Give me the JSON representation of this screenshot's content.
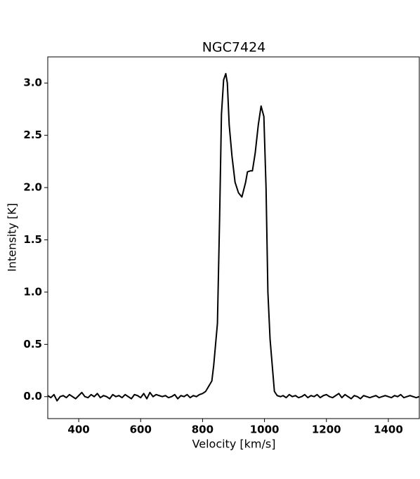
{
  "chart_data": {
    "type": "line",
    "title": "NGC7424",
    "x_label": "Velocity [km/s]",
    "y_label": "Intensity [K]",
    "x": [
      300,
      310,
      320,
      330,
      340,
      350,
      360,
      370,
      380,
      390,
      400,
      410,
      420,
      430,
      440,
      450,
      460,
      470,
      480,
      490,
      500,
      510,
      520,
      530,
      540,
      550,
      560,
      570,
      580,
      590,
      600,
      610,
      620,
      630,
      640,
      650,
      660,
      670,
      680,
      690,
      700,
      710,
      720,
      730,
      740,
      750,
      760,
      770,
      780,
      790,
      800,
      810,
      820,
      830,
      836,
      848,
      855,
      861,
      868,
      875,
      880,
      886,
      895,
      905,
      916,
      927,
      939,
      945,
      955,
      961,
      970,
      980,
      989,
      998,
      1005,
      1011,
      1018,
      1025,
      1032,
      1041,
      1052,
      1060,
      1070,
      1080,
      1090,
      1100,
      1110,
      1120,
      1130,
      1140,
      1150,
      1160,
      1170,
      1180,
      1190,
      1200,
      1210,
      1220,
      1230,
      1240,
      1250,
      1260,
      1270,
      1280,
      1290,
      1300,
      1310,
      1320,
      1330,
      1340,
      1350,
      1360,
      1370,
      1380,
      1390,
      1400,
      1410,
      1420,
      1430,
      1440,
      1450,
      1460,
      1470,
      1480,
      1490,
      1500
    ],
    "series": [
      {
        "name": "NGC7424",
        "color": "#000000",
        "values": [
          0.01,
          -0.01,
          0.02,
          -0.04,
          0.0,
          0.01,
          -0.01,
          0.02,
          0.0,
          -0.02,
          0.01,
          0.04,
          0.0,
          -0.01,
          0.02,
          0.0,
          0.03,
          -0.01,
          0.01,
          0.0,
          -0.02,
          0.02,
          0.0,
          0.01,
          -0.01,
          0.02,
          0.0,
          -0.02,
          0.02,
          0.01,
          -0.01,
          0.03,
          -0.02,
          0.04,
          0.0,
          0.02,
          0.01,
          0.0,
          0.01,
          -0.01,
          0.0,
          0.02,
          -0.02,
          0.01,
          0.0,
          0.02,
          -0.01,
          0.01,
          0.0,
          0.02,
          0.03,
          0.05,
          0.1,
          0.15,
          0.3,
          0.7,
          1.7,
          2.7,
          3.03,
          3.09,
          3.0,
          2.6,
          2.3,
          2.05,
          1.95,
          1.91,
          2.05,
          2.15,
          2.16,
          2.16,
          2.33,
          2.6,
          2.78,
          2.68,
          2.0,
          1.0,
          0.55,
          0.3,
          0.05,
          0.01,
          0.0,
          0.01,
          -0.01,
          0.02,
          0.0,
          0.01,
          -0.01,
          0.0,
          0.02,
          -0.01,
          0.01,
          0.0,
          0.02,
          -0.01,
          0.01,
          0.02,
          0.0,
          -0.01,
          0.01,
          0.03,
          -0.01,
          0.02,
          0.0,
          -0.02,
          0.01,
          0.0,
          -0.02,
          0.01,
          0.0,
          -0.01,
          0.0,
          0.01,
          -0.01,
          0.0,
          0.01,
          0.0,
          -0.01,
          0.01,
          0.0,
          0.02,
          -0.01,
          0.0,
          0.01,
          0.0,
          -0.01,
          0.0
        ]
      }
    ],
    "xlim": [
      300,
      1500
    ],
    "ylim": [
      -0.21,
      3.25
    ],
    "xticks": [
      400,
      600,
      800,
      1000,
      1200,
      1400
    ],
    "yticks": [
      {
        "value": 0,
        "label": "0.0"
      },
      0.5,
      {
        "value": 1,
        "label": "1.0"
      },
      1.5,
      {
        "value": 2,
        "label": "2.0"
      },
      2.5,
      {
        "value": 3,
        "label": "3.0"
      }
    ]
  }
}
